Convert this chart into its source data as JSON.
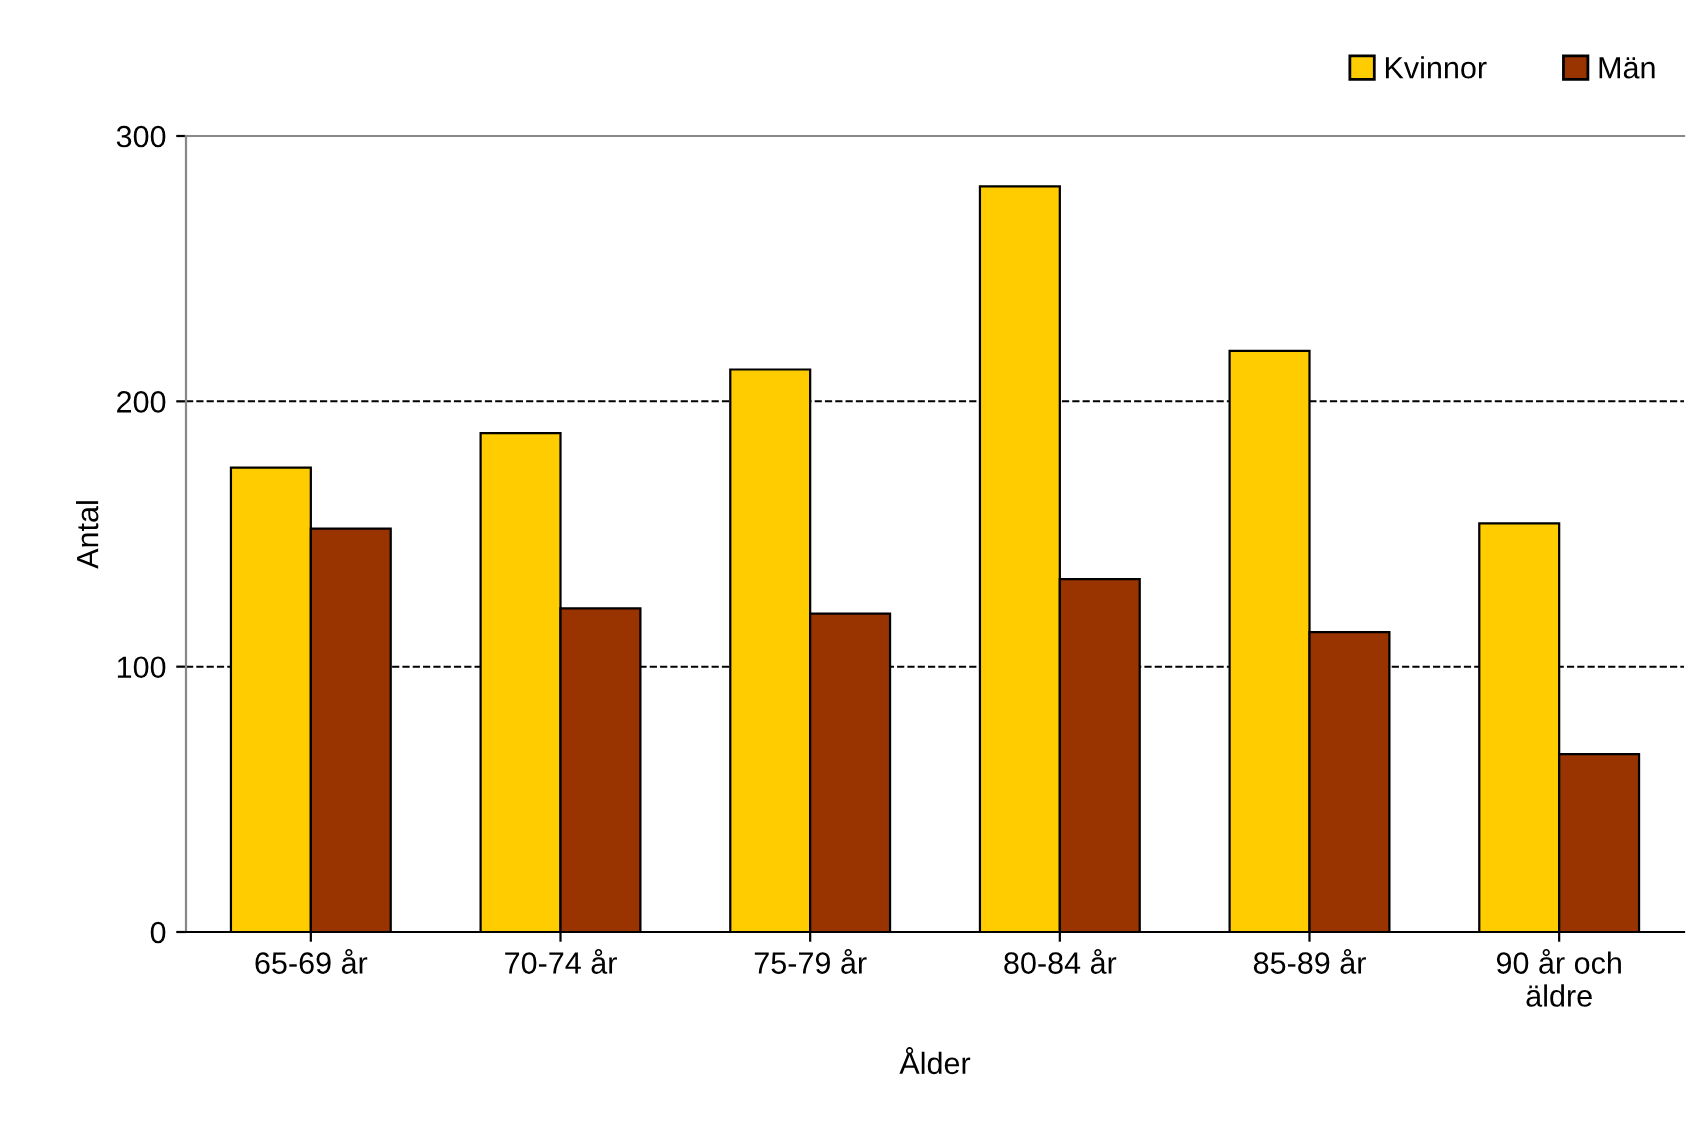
{
  "chart_data": {
    "type": "bar",
    "xlabel": "Ålder",
    "ylabel": "Antal",
    "categories": [
      "65-69 år",
      "70-74 år",
      "75-79 år",
      "80-84 år",
      "85-89 år",
      "90 år och\näldre"
    ],
    "series": [
      {
        "name": "Kvinnor",
        "color": "#ffcc00",
        "values": [
          175,
          188,
          212,
          281,
          219,
          154
        ]
      },
      {
        "name": "Män",
        "color": "#993300",
        "values": [
          152,
          122,
          120,
          133,
          113,
          67
        ]
      }
    ],
    "ylim": [
      0,
      300
    ],
    "yticks": [
      0,
      100,
      200,
      300
    ],
    "grid": "y",
    "line_style": "dashed",
    "legend": "top right"
  }
}
